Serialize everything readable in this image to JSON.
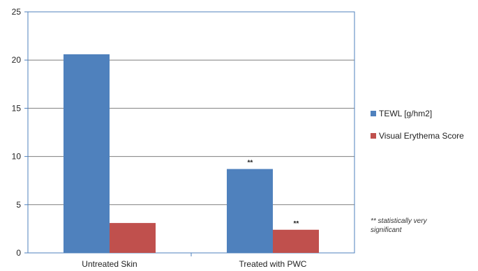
{
  "chart_data": {
    "type": "bar",
    "categories": [
      "Untreated Skin",
      "Treated with PWC"
    ],
    "series": [
      {
        "name": "TEWL [g/hm2]",
        "values": [
          20.6,
          8.7
        ],
        "color": "#4f81bd",
        "markers": [
          "",
          "**"
        ]
      },
      {
        "name": "Visual Erythema Score",
        "values": [
          3.1,
          2.4
        ],
        "color": "#c0504d",
        "markers": [
          "",
          "**"
        ]
      }
    ],
    "ylim": [
      0,
      25
    ],
    "yticks": [
      0,
      5,
      10,
      15,
      20,
      25
    ],
    "grid": true,
    "legend": "right",
    "annotation": [
      "** statistically very",
      "significant"
    ]
  }
}
